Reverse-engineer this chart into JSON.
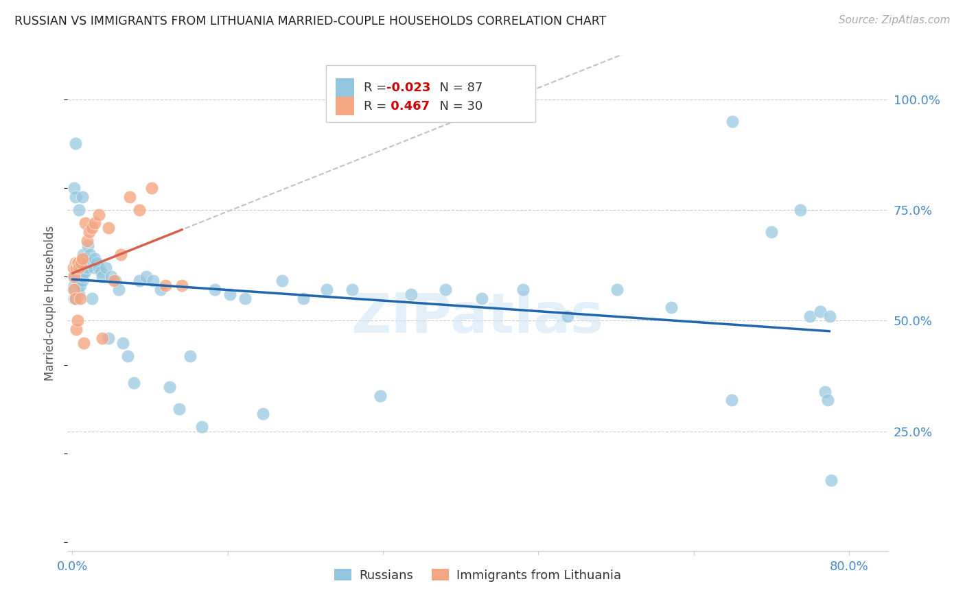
{
  "title": "RUSSIAN VS IMMIGRANTS FROM LITHUANIA MARRIED-COUPLE HOUSEHOLDS CORRELATION CHART",
  "source": "Source: ZipAtlas.com",
  "ylabel": "Married-couple Households",
  "blue_color": "#92c5de",
  "pink_color": "#f4a582",
  "trendline_blue_color": "#2166ac",
  "trendline_pink_color": "#d6604d",
  "trendline_dashed_color": "#bbbbbb",
  "watermark": "ZIPatlas",
  "xmin": -0.005,
  "xmax": 0.84,
  "ymin": -0.02,
  "ymax": 1.1,
  "russians_x": [
    0.001,
    0.001,
    0.002,
    0.002,
    0.002,
    0.003,
    0.003,
    0.003,
    0.003,
    0.004,
    0.004,
    0.004,
    0.005,
    0.005,
    0.005,
    0.006,
    0.006,
    0.006,
    0.007,
    0.007,
    0.007,
    0.008,
    0.008,
    0.009,
    0.009,
    0.01,
    0.01,
    0.011,
    0.011,
    0.012,
    0.013,
    0.013,
    0.014,
    0.015,
    0.016,
    0.017,
    0.018,
    0.019,
    0.02,
    0.022,
    0.023,
    0.025,
    0.027,
    0.029,
    0.031,
    0.034,
    0.037,
    0.04,
    0.044,
    0.048,
    0.052,
    0.057,
    0.063,
    0.069,
    0.076,
    0.083,
    0.091,
    0.1,
    0.11,
    0.121,
    0.133,
    0.147,
    0.162,
    0.178,
    0.196,
    0.216,
    0.238,
    0.262,
    0.288,
    0.317,
    0.349,
    0.384,
    0.422,
    0.464,
    0.51,
    0.561,
    0.617,
    0.679,
    0.68,
    0.72,
    0.75,
    0.76,
    0.77,
    0.775,
    0.778,
    0.78,
    0.782
  ],
  "russians_y": [
    0.6,
    0.57,
    0.62,
    0.58,
    0.55,
    0.63,
    0.6,
    0.58,
    0.55,
    0.61,
    0.58,
    0.56,
    0.62,
    0.59,
    0.57,
    0.63,
    0.6,
    0.58,
    0.62,
    0.59,
    0.56,
    0.61,
    0.58,
    0.63,
    0.6,
    0.62,
    0.59,
    0.63,
    0.6,
    0.62,
    0.64,
    0.61,
    0.63,
    0.62,
    0.64,
    0.63,
    0.65,
    0.63,
    0.64,
    0.62,
    0.64,
    0.63,
    0.62,
    0.61,
    0.6,
    0.62,
    0.58,
    0.6,
    0.59,
    0.57,
    0.58,
    0.59,
    0.6,
    0.59,
    0.6,
    0.59,
    0.57,
    0.57,
    0.6,
    0.59,
    0.58,
    0.57,
    0.56,
    0.55,
    0.54,
    0.59,
    0.55,
    0.57,
    0.57,
    0.56,
    0.56,
    0.57,
    0.55,
    0.57,
    0.56,
    0.57,
    0.56,
    0.55,
    0.55,
    0.55,
    0.56,
    0.57,
    0.56,
    0.57,
    0.56,
    0.57,
    0.57
  ],
  "russians_y_actual": [
    0.6,
    0.57,
    0.8,
    0.58,
    0.55,
    0.9,
    0.6,
    0.78,
    0.55,
    0.61,
    0.58,
    0.56,
    0.62,
    0.59,
    0.57,
    0.63,
    0.6,
    0.58,
    0.62,
    0.75,
    0.56,
    0.61,
    0.58,
    0.63,
    0.6,
    0.78,
    0.59,
    0.65,
    0.6,
    0.62,
    0.64,
    0.61,
    0.63,
    0.62,
    0.67,
    0.63,
    0.65,
    0.63,
    0.55,
    0.62,
    0.64,
    0.63,
    0.62,
    0.61,
    0.6,
    0.62,
    0.46,
    0.6,
    0.59,
    0.57,
    0.45,
    0.42,
    0.36,
    0.59,
    0.6,
    0.59,
    0.57,
    0.35,
    0.3,
    0.42,
    0.26,
    0.57,
    0.56,
    0.55,
    0.29,
    0.59,
    0.55,
    0.57,
    0.57,
    0.33,
    0.56,
    0.57,
    0.55,
    0.57,
    0.51,
    0.57,
    0.53,
    0.32,
    0.95,
    0.7,
    0.75,
    0.51,
    0.52,
    0.34,
    0.32,
    0.51,
    0.14
  ],
  "lithuania_x": [
    0.001,
    0.002,
    0.002,
    0.003,
    0.003,
    0.004,
    0.004,
    0.005,
    0.005,
    0.006,
    0.007,
    0.008,
    0.009,
    0.01,
    0.012,
    0.013,
    0.015,
    0.017,
    0.02,
    0.023,
    0.027,
    0.031,
    0.037,
    0.043,
    0.05,
    0.059,
    0.069,
    0.082,
    0.096,
    0.113
  ],
  "lithuania_y": [
    0.62,
    0.6,
    0.57,
    0.63,
    0.6,
    0.62,
    0.59,
    0.63,
    0.6,
    0.63,
    0.62,
    0.62,
    0.63,
    0.64,
    0.66,
    0.65,
    0.68,
    0.7,
    0.71,
    0.72,
    0.74,
    0.72,
    0.71,
    0.74,
    0.74,
    0.78,
    0.75,
    0.8,
    0.75,
    0.77
  ],
  "lithuania_y_actual": [
    0.62,
    0.6,
    0.57,
    0.63,
    0.55,
    0.62,
    0.48,
    0.63,
    0.5,
    0.63,
    0.62,
    0.55,
    0.63,
    0.64,
    0.45,
    0.72,
    0.68,
    0.7,
    0.71,
    0.72,
    0.74,
    0.46,
    0.71,
    0.59,
    0.65,
    0.78,
    0.75,
    0.8,
    0.58,
    0.58
  ]
}
